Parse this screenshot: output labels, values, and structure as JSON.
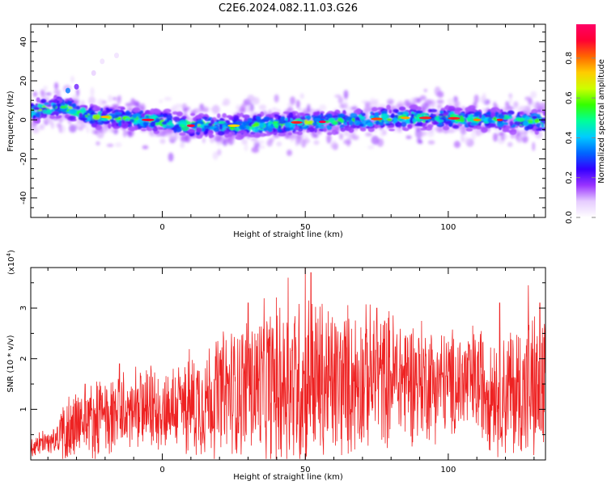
{
  "title": "C2E6.2024.082.11.03.G26",
  "colors": {
    "snr_line": "#ee2222",
    "colormap": [
      "#ffffff",
      "#e6ccff",
      "#9933ff",
      "#3300ff",
      "#0066ff",
      "#00ccff",
      "#00ff99",
      "#33ff00",
      "#ccff00",
      "#ffcc00",
      "#ff6600",
      "#ff0033",
      "#ff0066"
    ]
  },
  "chart_data": [
    {
      "type": "heatmap",
      "xlabel": "Height of straight line (km)",
      "ylabel": "Frequency (Hz)",
      "xlim": [
        -46,
        134
      ],
      "ylim": [
        -50,
        49
      ],
      "x_ticks": [
        0,
        50,
        100
      ],
      "y_ticks": [
        -40,
        -20,
        0,
        20,
        40
      ],
      "grid": false,
      "description_of_band": "spectral energy concentrated along a band near 0 Hz across all heights",
      "band_center": {
        "x": [
          -46,
          -40,
          -35,
          -30,
          -25,
          -15,
          -5,
          0,
          10,
          20,
          30,
          40,
          50,
          60,
          70,
          80,
          90,
          100,
          110,
          120,
          134
        ],
        "y": [
          4,
          6,
          7,
          4,
          2,
          1,
          0,
          -1,
          -3,
          -3,
          -3,
          -2,
          -1,
          -1,
          0,
          1,
          1,
          1,
          0,
          0,
          -1
        ]
      },
      "colorbar": {
        "label": "Normalized spectral amplitude",
        "range": [
          0.0,
          0.97
        ],
        "ticks": [
          "0.0",
          "0.2",
          "0.4",
          "0.6",
          "0.8"
        ]
      }
    },
    {
      "type": "line",
      "xlabel": "Height of straight line (km)",
      "ylabel": "SNR (10 * v/v)",
      "scale_label": "(x10",
      "scale_exp": "4",
      "scale_suffix": ")",
      "xlim": [
        -46,
        134
      ],
      "ylim": [
        0,
        3.8
      ],
      "x_ticks": [
        0,
        50,
        100
      ],
      "y_ticks": [
        1,
        2,
        3
      ],
      "grid": false,
      "series": [
        {
          "envelope_x": [
            -46,
            -37,
            -34,
            -28,
            -20,
            -10,
            0,
            10,
            20,
            30,
            40,
            50,
            60,
            70,
            80,
            90,
            100,
            110,
            120,
            134
          ],
          "envelope_mean": [
            0.25,
            0.4,
            0.6,
            0.75,
            0.85,
            0.95,
            1.0,
            1.1,
            1.3,
            1.45,
            1.5,
            1.55,
            1.5,
            1.6,
            1.65,
            1.6,
            1.5,
            1.55,
            1.35,
            1.4
          ],
          "envelope_amp": [
            0.25,
            0.3,
            0.9,
            0.8,
            0.9,
            0.9,
            0.9,
            1.2,
            1.4,
            1.6,
            1.9,
            2.1,
            1.8,
            1.6,
            1.5,
            1.4,
            1.2,
            1.3,
            1.5,
            1.8
          ],
          "peaks": [
            {
              "x": -27,
              "y": 1.5
            },
            {
              "x": -15,
              "y": 1.9
            },
            {
              "x": 30,
              "y": 3.1
            },
            {
              "x": 44,
              "y": 3.6
            },
            {
              "x": 50,
              "y": 3.8
            },
            {
              "x": 52,
              "y": 3.7
            },
            {
              "x": 75,
              "y": 3.0
            },
            {
              "x": 118,
              "y": 3.1
            },
            {
              "x": 128,
              "y": 3.45
            },
            {
              "x": 132,
              "y": 3.1
            }
          ]
        }
      ]
    }
  ]
}
